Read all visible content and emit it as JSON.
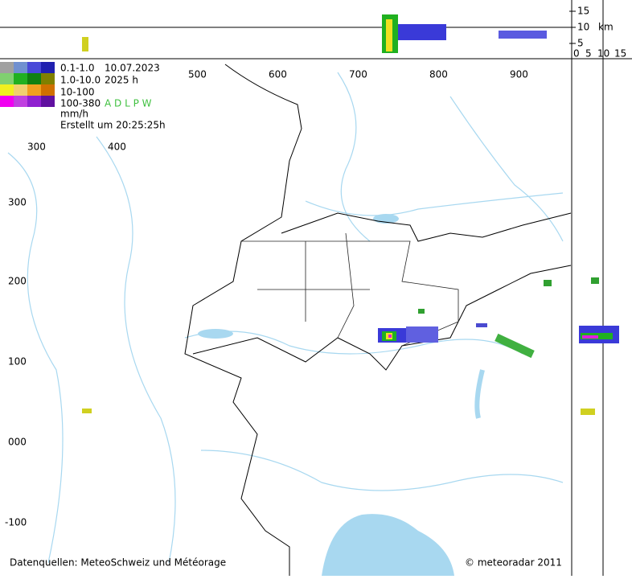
{
  "legend": {
    "rows": [
      {
        "range": "0.1-1.0",
        "info": "10.07.2023"
      },
      {
        "range": "1.0-10.0",
        "info": "2025 h"
      },
      {
        "range": "10-100"
      },
      {
        "range": "100-380",
        "info": "A D L P W"
      }
    ],
    "unit": "mm/h",
    "created": "Erstellt um 20:25:25h"
  },
  "grid_labels": {
    "x_outer": [
      "500",
      "600",
      "700",
      "800",
      "900"
    ],
    "x_inner": [
      "300",
      "400"
    ],
    "y": [
      "300",
      "200",
      "100",
      "000",
      "-100"
    ]
  },
  "height_scale": {
    "ticks": [
      "15",
      "10",
      "5"
    ],
    "unit": "km",
    "bottom": [
      "0",
      "5",
      "10",
      "15"
    ]
  },
  "footer": {
    "source": "Datenquellen: MeteoSchweiz und Météorage",
    "copyright": "© meteoradar 2011"
  }
}
